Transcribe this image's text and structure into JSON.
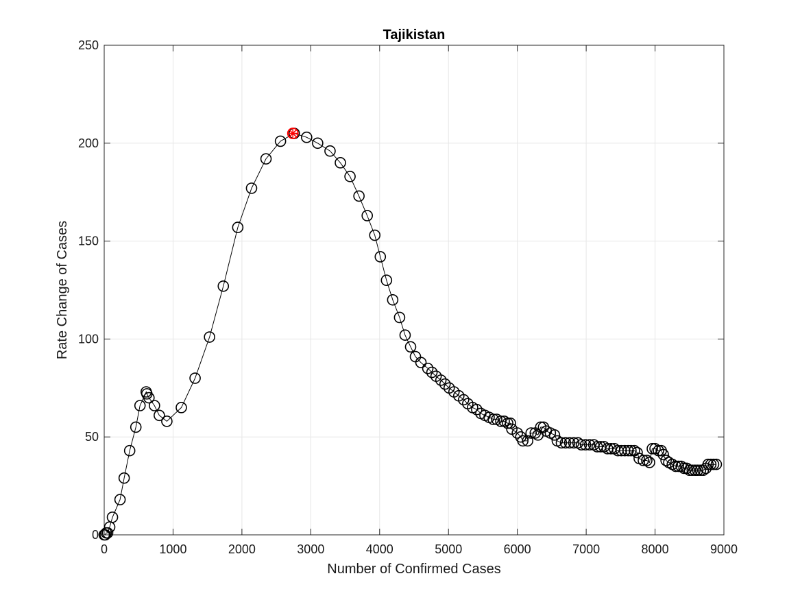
{
  "chart_data": {
    "type": "scatter",
    "title": "Tajikistan",
    "xlabel": "Number of Confirmed Cases",
    "ylabel": "Rate Change of Cases",
    "xlim": [
      0,
      9000
    ],
    "ylim": [
      0,
      250
    ],
    "xticks": [
      "0",
      "1000",
      "2000",
      "3000",
      "4000",
      "5000",
      "6000",
      "7000",
      "8000",
      "9000"
    ],
    "yticks": [
      "0",
      "50",
      "100",
      "150",
      "200",
      "250"
    ],
    "grid": true,
    "colors": {
      "series": "#000000",
      "highlight": "#ff0000",
      "grid": "#e6e6e6",
      "axis": "#262626"
    },
    "series": [
      {
        "marker": "circle",
        "line": "solid",
        "x": [
          0,
          15,
          30,
          50,
          80,
          120,
          230,
          290,
          370,
          460,
          520,
          610,
          620,
          650,
          730,
          800,
          910,
          1120,
          1320,
          1530,
          1730,
          1940,
          2140,
          2350,
          2560,
          2760,
          2940,
          3100,
          3280,
          3430,
          3570,
          3700,
          3820,
          3930,
          4010,
          4100,
          4190,
          4290,
          4370,
          4450,
          4520,
          4600,
          4700,
          4760,
          4820,
          4890,
          4950,
          5010,
          5080,
          5150,
          5220,
          5280,
          5350,
          5410,
          5470,
          5530,
          5590,
          5650,
          5700,
          5760,
          5810,
          5860,
          5900,
          5920,
          6000,
          6050,
          6080,
          6150,
          6200,
          6260,
          6300,
          6340,
          6380,
          6420,
          6480,
          6540,
          6580,
          6640,
          6700,
          6760,
          6820,
          6880,
          6930,
          6990,
          7050,
          7110,
          7160,
          7210,
          7260,
          7310,
          7360,
          7410,
          7460,
          7510,
          7560,
          7610,
          7650,
          7700,
          7740,
          7770,
          7830,
          7880,
          7920,
          7960,
          8000,
          8050,
          8090,
          8120,
          8160,
          8200,
          8250,
          8300,
          8340,
          8380,
          8420,
          8460,
          8500,
          8540,
          8580,
          8620,
          8660,
          8700,
          8740,
          8770,
          8810,
          8850,
          8890
        ],
        "y": [
          0,
          0,
          1,
          1,
          4,
          9,
          18,
          29,
          43,
          55,
          66,
          73,
          72,
          70,
          66,
          61,
          58,
          65,
          80,
          101,
          127,
          157,
          177,
          192,
          201,
          205,
          203,
          200,
          196,
          190,
          183,
          173,
          163,
          153,
          142,
          130,
          120,
          111,
          102,
          96,
          91,
          88,
          85,
          83,
          81,
          79,
          77,
          75,
          73,
          71,
          69,
          67,
          65,
          64,
          62,
          61,
          60,
          59,
          59,
          58,
          58,
          57,
          57,
          54,
          52,
          50,
          48,
          48,
          52,
          52,
          51,
          55,
          55,
          53,
          52,
          51,
          48,
          47,
          47,
          47,
          47,
          47,
          46,
          46,
          46,
          46,
          45,
          45,
          45,
          44,
          44,
          44,
          43,
          43,
          43,
          43,
          43,
          43,
          42,
          39,
          38,
          38,
          37,
          44,
          44,
          43,
          43,
          41,
          38,
          37,
          36,
          35,
          35,
          35,
          34,
          34,
          33,
          33,
          33,
          33,
          33,
          33,
          34,
          36,
          36,
          36,
          36
        ]
      }
    ],
    "highlight": {
      "x": 2740,
      "y": 205,
      "marker": "asterisk-circle"
    }
  }
}
